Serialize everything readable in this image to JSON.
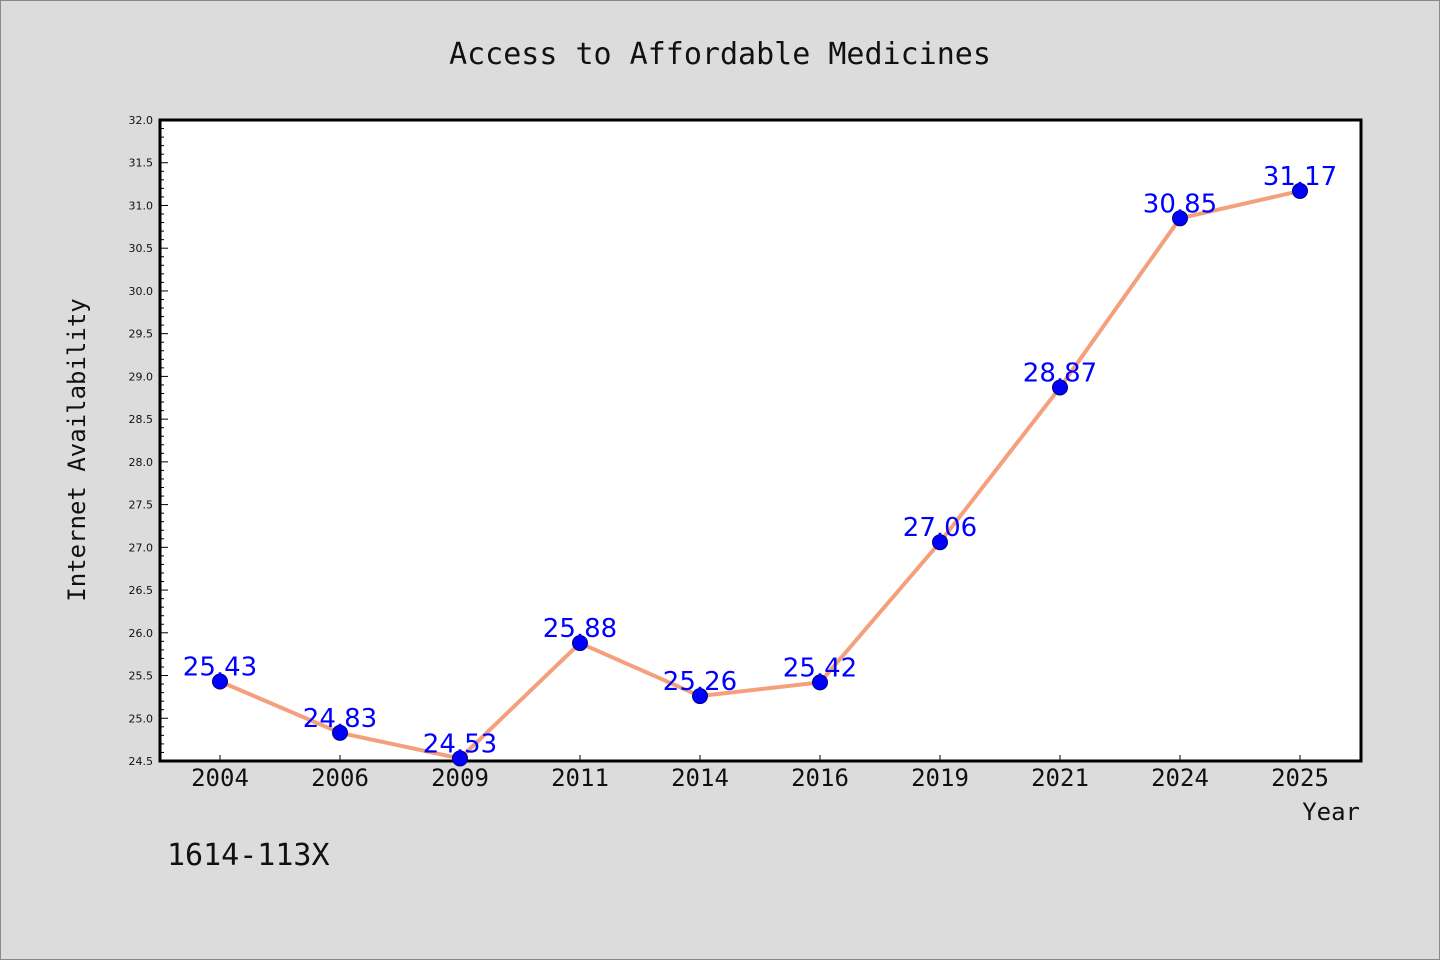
{
  "chart_data": {
    "type": "line",
    "title": "Access to Affordable Medicines",
    "xlabel": "Year",
    "ylabel": "Internet Availability",
    "categories": [
      "2004",
      "2006",
      "2009",
      "2011",
      "2014",
      "2016",
      "2019",
      "2021",
      "2024",
      "2025"
    ],
    "values": [
      25.43,
      24.83,
      24.53,
      25.88,
      25.26,
      25.42,
      27.06,
      28.87,
      30.85,
      31.17
    ],
    "data_labels": [
      "25.43",
      "24.83",
      "24.53",
      "25.88",
      "25.26",
      "25.42",
      "27.06",
      "28.87",
      "30.85",
      "31.17"
    ],
    "ylim": [
      24.5,
      32.0
    ],
    "yticks": [
      "24.5",
      "25.0",
      "25.5",
      "26.0",
      "26.5",
      "27.0",
      "27.5",
      "28.0",
      "28.5",
      "29.0",
      "29.5",
      "30.0",
      "30.5",
      "31.0",
      "31.5",
      "32.0"
    ],
    "grid": false,
    "legend": "none",
    "line_color": "#f4a07c",
    "marker_color": "#0000ff",
    "label_color": "#0000ff",
    "background_color": "#dcdcdc",
    "plot_background_color": "#ffffff"
  },
  "annotation": {
    "issn": "1614-113X"
  }
}
